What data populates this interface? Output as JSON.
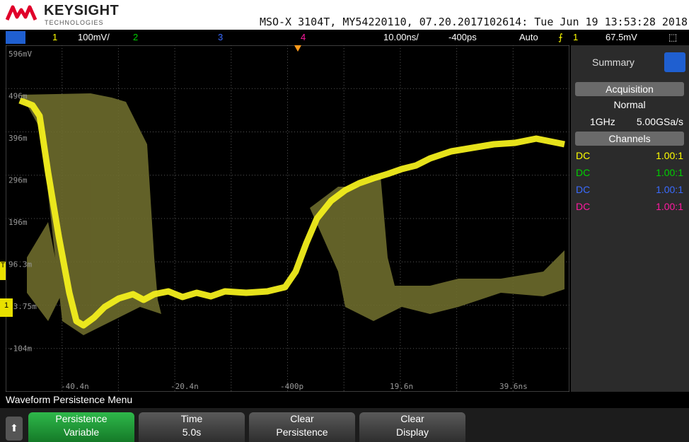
{
  "header": {
    "brand": "KEYSIGHT",
    "sub": "TECHNOLOGIES",
    "info": "MSO-X 3104T, MY54220110, 07.20.2017102614: Tue Jun 19 13:53:28 2018"
  },
  "toolbar": {
    "ch1": "1",
    "ch1_scale": "100mV/",
    "ch2": "2",
    "ch3": "3",
    "ch4": "4",
    "timebase": "10.00ns/",
    "delay": "-400ps",
    "mode": "Auto",
    "trigger_source": "1",
    "trigger_level": "67.5mV"
  },
  "display": {
    "y_labels": [
      "596mV",
      "496m",
      "396m",
      "296m",
      "196m",
      "96.3m",
      "-3.75m",
      "-104m"
    ],
    "x_labels": [
      "-40.4n",
      "-20.4n",
      "-400p",
      "19.6n",
      "39.6ns"
    ],
    "trigger_marker": "T",
    "ground_marker": "1"
  },
  "side_panel": {
    "tab": "Summary",
    "acquisition": "Acquisition",
    "acq_mode": "Normal",
    "bandwidth": "1GHz",
    "sample_rate": "5.00GSa/s",
    "channels": "Channels",
    "channel_rows": [
      {
        "coupling": "DC",
        "probe": "1.00:1"
      },
      {
        "coupling": "DC",
        "probe": "1.00:1"
      },
      {
        "coupling": "DC",
        "probe": "1.00:1"
      },
      {
        "coupling": "DC",
        "probe": "1.00:1"
      }
    ]
  },
  "menu": {
    "title": "Waveform Persistence Menu",
    "softkeys": [
      [
        "Persistence",
        "Variable"
      ],
      [
        "Time",
        "5.0s"
      ],
      [
        "Clear",
        "Persistence"
      ],
      [
        "Clear",
        "Display"
      ]
    ]
  }
}
